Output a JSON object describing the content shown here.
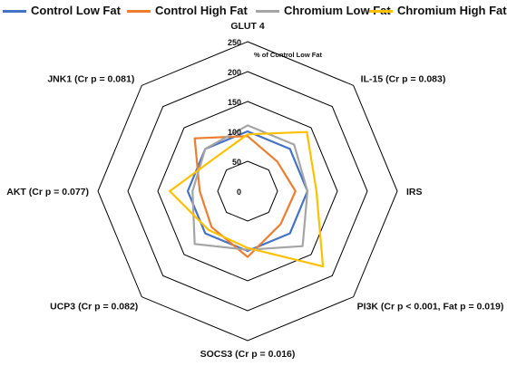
{
  "chart_data": {
    "type": "radar",
    "title": "",
    "unit_label": "% of Control Low Fat",
    "axes": [
      "GLUT 4",
      "IL-15 (Cr p = 0.083)",
      "IRS",
      "PI3K (Cr p < 0.001, Fat p = 0.019)",
      "SOCS3 (Cr p = 0.016)",
      "UCP3 (Cr p = 0.082)",
      "AKT (Cr p = 0.077)",
      "JNK1 (Cr p = 0.081)"
    ],
    "r_ticks": [
      0,
      50,
      100,
      150,
      200,
      250
    ],
    "r_range": [
      0,
      250
    ],
    "grid": true,
    "legend_position": "top",
    "series": [
      {
        "name": "Control Low Fat",
        "color": "#4472C4",
        "values": [
          100,
          100,
          100,
          100,
          100,
          100,
          100,
          100
        ]
      },
      {
        "name": "Control High Fat",
        "color": "#ED7D31",
        "values": [
          92,
          70,
          80,
          78,
          110,
          85,
          80,
          125
        ]
      },
      {
        "name": "Chromium Low Fat",
        "color": "#A5A5A5",
        "values": [
          110,
          110,
          100,
          130,
          98,
          125,
          92,
          100
        ]
      },
      {
        "name": "Chromium High Fat",
        "color": "#FFC000",
        "values": [
          95,
          140,
          115,
          178,
          95,
          92,
          130,
          78
        ]
      }
    ]
  }
}
